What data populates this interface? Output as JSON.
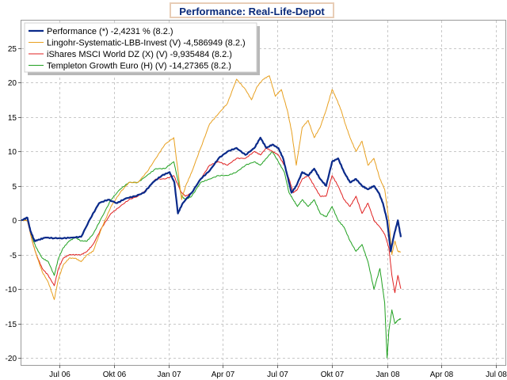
{
  "header": {
    "title": "Performance: Real-Life-Depot"
  },
  "chart_data": {
    "type": "line",
    "title": "Performance: Real-Life-Depot",
    "xlabel": "",
    "ylabel": "",
    "ylim": [
      -21,
      29
    ],
    "yticks": [
      25,
      20,
      15,
      10,
      5,
      0,
      -5,
      -10,
      -15,
      -20
    ],
    "x_range": [
      0,
      610
    ],
    "x_ticks": [
      {
        "label": "Jul 06",
        "day": 63
      },
      {
        "label": "Okt 06",
        "day": 155
      },
      {
        "label": "Jan 07",
        "day": 247
      },
      {
        "label": "Apr 07",
        "day": 337
      },
      {
        "label": "Jul 07",
        "day": 428
      },
      {
        "label": "Okt 07",
        "day": 520
      },
      {
        "label": "Jan 08",
        "day": 612
      },
      {
        "label": "Apr 08",
        "day": 703
      },
      {
        "label": "Jul 08",
        "day": 794
      }
    ],
    "x_day_range": [
      0,
      810
    ],
    "grid": true,
    "legend_position": "top-left",
    "series": [
      {
        "name": "Performance (*) -2,4231 % (8.2.)",
        "color": "#0a2a8a",
        "width": 2.2,
        "days": [
          0,
          10,
          15,
          22,
          30,
          40,
          55,
          70,
          85,
          100,
          115,
          130,
          145,
          160,
          175,
          190,
          205,
          220,
          235,
          248,
          256,
          262,
          270,
          285,
          300,
          315,
          330,
          345,
          360,
          375,
          390,
          400,
          410,
          420,
          430,
          438,
          445,
          452,
          460,
          470,
          480,
          490,
          500,
          510,
          520,
          530,
          540,
          550,
          560,
          570,
          580,
          590,
          598,
          605,
          612,
          618,
          624,
          630,
          635
        ],
        "values": [
          0,
          0.4,
          -1.5,
          -3.0,
          -2.8,
          -2.5,
          -2.6,
          -2.6,
          -2.5,
          -2.4,
          0.2,
          2.5,
          3.0,
          2.5,
          3.2,
          3.5,
          4.0,
          5.5,
          6.5,
          7.0,
          5.5,
          1.0,
          2.5,
          4.0,
          6.0,
          7.2,
          9.0,
          10.0,
          10.5,
          9.5,
          10.5,
          12.0,
          10.5,
          11.0,
          10.5,
          9.0,
          6.5,
          4.0,
          5.0,
          7.0,
          6.5,
          7.5,
          6.0,
          5.0,
          8.5,
          9.0,
          7.0,
          5.5,
          6.0,
          5.0,
          4.5,
          5.0,
          4.0,
          2.5,
          0.0,
          -4.5,
          -2.0,
          0.0,
          -2.42
        ]
      },
      {
        "name": "Lingohr-Systematic-LBB-Invest (V) -4,586949 (8.2.)",
        "color": "#e8a020",
        "width": 1,
        "days": [
          0,
          10,
          18,
          25,
          35,
          45,
          55,
          62,
          70,
          80,
          90,
          100,
          110,
          120,
          135,
          150,
          165,
          180,
          195,
          210,
          225,
          240,
          255,
          268,
          275,
          285,
          300,
          315,
          330,
          345,
          360,
          375,
          385,
          395,
          405,
          415,
          425,
          435,
          445,
          452,
          460,
          470,
          480,
          490,
          500,
          510,
          520,
          528,
          535,
          542,
          550,
          560,
          570,
          580,
          590,
          600,
          608,
          615,
          620,
          625,
          630,
          635
        ],
        "values": [
          0,
          0,
          -3.0,
          -5.0,
          -7.5,
          -9.0,
          -11.5,
          -8.5,
          -6.5,
          -5.5,
          -5.5,
          -6.0,
          -5.0,
          -4.5,
          -1.0,
          2.0,
          4.0,
          5.5,
          5.5,
          7.0,
          9.0,
          11.0,
          12.0,
          3.0,
          5.0,
          7.0,
          10.5,
          14.0,
          15.5,
          17.0,
          20.5,
          19.0,
          17.5,
          19.5,
          20.5,
          21.0,
          18.0,
          19.0,
          16.0,
          13.0,
          8.0,
          13.5,
          14.5,
          12.0,
          13.5,
          16.0,
          19.0,
          17.5,
          16.0,
          14.0,
          12.0,
          10.0,
          11.5,
          8.0,
          9.0,
          6.0,
          4.5,
          0.0,
          -5.0,
          -3.0,
          -4.5,
          -4.59
        ]
      },
      {
        "name": "iShares MSCI World DZ (X) (V) -9,935484 (8.2.)",
        "color": "#e02020",
        "width": 1,
        "days": [
          0,
          10,
          18,
          25,
          35,
          45,
          55,
          62,
          70,
          80,
          90,
          100,
          110,
          120,
          135,
          150,
          165,
          180,
          195,
          210,
          225,
          240,
          255,
          268,
          275,
          285,
          300,
          315,
          330,
          345,
          360,
          375,
          390,
          400,
          410,
          420,
          430,
          440,
          448,
          455,
          462,
          470,
          480,
          490,
          500,
          510,
          520,
          530,
          540,
          550,
          560,
          570,
          580,
          590,
          600,
          608,
          615,
          620,
          625,
          630,
          635
        ],
        "values": [
          0,
          0,
          -3.0,
          -5.0,
          -7.0,
          -8.0,
          -9.5,
          -7.0,
          -5.5,
          -5.0,
          -5.0,
          -5.0,
          -4.5,
          -3.5,
          -1.0,
          1.0,
          2.0,
          3.0,
          3.5,
          4.5,
          6.0,
          6.0,
          6.5,
          4.0,
          3.5,
          4.0,
          6.0,
          8.0,
          8.5,
          8.0,
          9.0,
          9.0,
          10.0,
          9.5,
          10.5,
          10.0,
          9.5,
          8.0,
          6.0,
          4.0,
          4.5,
          6.0,
          6.5,
          5.0,
          3.5,
          3.5,
          6.5,
          5.0,
          3.0,
          2.0,
          3.5,
          1.0,
          2.5,
          0.0,
          -1.0,
          -2.0,
          -4.0,
          -8.0,
          -10.5,
          -8.0,
          -9.94
        ]
      },
      {
        "name": "Templeton Growth Euro (H) (V) -14,27365 (8.2.)",
        "color": "#20a020",
        "width": 1,
        "days": [
          0,
          10,
          18,
          25,
          35,
          45,
          55,
          62,
          70,
          80,
          90,
          100,
          110,
          120,
          135,
          150,
          165,
          180,
          195,
          210,
          225,
          240,
          255,
          268,
          275,
          285,
          300,
          315,
          330,
          345,
          360,
          375,
          390,
          400,
          410,
          420,
          430,
          440,
          448,
          455,
          462,
          470,
          480,
          490,
          500,
          510,
          520,
          530,
          540,
          550,
          560,
          570,
          580,
          590,
          600,
          608,
          612,
          615,
          620,
          625,
          630,
          635
        ],
        "values": [
          0,
          0,
          -2.5,
          -4.0,
          -5.5,
          -6.0,
          -8.0,
          -5.5,
          -4.0,
          -3.0,
          -2.5,
          -3.0,
          -3.0,
          -2.0,
          0.5,
          3.0,
          4.5,
          5.5,
          5.5,
          6.5,
          7.5,
          7.5,
          8.5,
          3.5,
          3.0,
          3.5,
          5.5,
          6.0,
          6.5,
          6.5,
          7.0,
          8.0,
          8.5,
          8.0,
          9.0,
          10.0,
          8.5,
          7.0,
          4.0,
          3.0,
          2.0,
          3.0,
          2.0,
          3.0,
          1.0,
          0.5,
          2.0,
          0.0,
          -1.0,
          -3.0,
          -4.5,
          -3.5,
          -6.0,
          -10.0,
          -7.0,
          -12.0,
          -20.0,
          -16.0,
          -13.0,
          -15.0,
          -14.5,
          -14.27
        ]
      }
    ]
  }
}
